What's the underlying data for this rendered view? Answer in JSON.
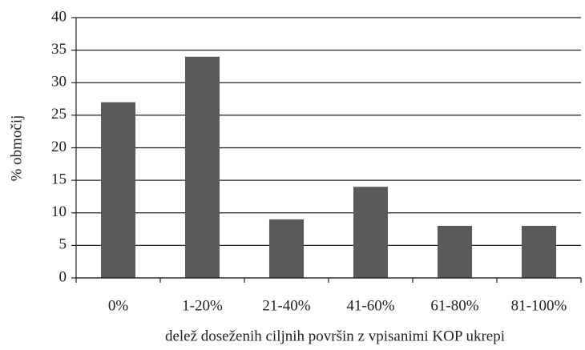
{
  "chart_data": {
    "type": "bar",
    "x_label": "delež doseženih ciljnih površin z vpisanimi KOP ukrepi",
    "y_label": "% območij",
    "categories": [
      "0%",
      "1-20%",
      "21-40%",
      "41-60%",
      "61-80%",
      "81-100%"
    ],
    "values": [
      27,
      34,
      9,
      14,
      8,
      8
    ],
    "color": "#5a5a5c",
    "ylim": [
      0,
      40
    ],
    "yticks": [
      0,
      5,
      10,
      15,
      20,
      25,
      30,
      35,
      40
    ],
    "grid": true
  }
}
